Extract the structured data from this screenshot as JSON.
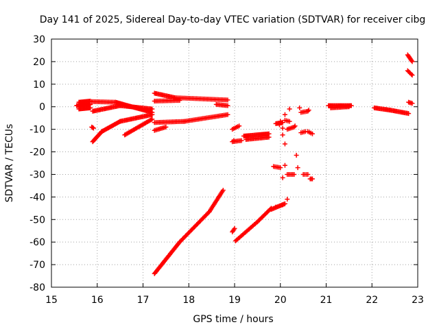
{
  "chart_data": {
    "type": "scatter",
    "title": "Day 141 of 2025, Sidereal Day-to-day VTEC variation (SDTVAR) for receiver cibg",
    "xlabel": "GPS time / hours",
    "ylabel": "SDTVAR / TECUs",
    "xlim": [
      15,
      23
    ],
    "ylim": [
      -80,
      30
    ],
    "xticks": [
      15,
      16,
      17,
      18,
      19,
      20,
      21,
      22,
      23
    ],
    "yticks": [
      -80,
      -70,
      -60,
      -50,
      -40,
      -30,
      -20,
      -10,
      0,
      10,
      20,
      30
    ],
    "xtick_labels": [
      "15",
      "16",
      "17",
      "18",
      "19",
      "20",
      "21",
      "22",
      "23"
    ],
    "ytick_labels": [
      "-80",
      "-70",
      "-60",
      "-50",
      "-40",
      "-30",
      "-20",
      "-10",
      "0",
      "10",
      "20",
      "30"
    ],
    "grid": true,
    "marker": "+",
    "color": "#ff0000",
    "segments": [
      {
        "name": "s1",
        "x0": 15.55,
        "y0": 0.5,
        "x1": 15.85,
        "y1": 1.0,
        "n": 26
      },
      {
        "name": "s2",
        "x0": 15.6,
        "y0": 2.0,
        "x1": 15.85,
        "y1": 2.5,
        "n": 14
      },
      {
        "name": "s3",
        "x0": 15.6,
        "y0": -1.0,
        "x1": 15.85,
        "y1": -0.5,
        "n": 14
      },
      {
        "name": "s4",
        "x0": 15.85,
        "y0": 2.3,
        "x1": 16.4,
        "y1": 2.0,
        "n": 20
      },
      {
        "name": "s5",
        "x0": 16.4,
        "y0": 2.0,
        "x1": 17.2,
        "y1": -2.5,
        "n": 40
      },
      {
        "name": "s6",
        "x0": 15.9,
        "y0": -2.0,
        "x1": 16.5,
        "y1": 0.5,
        "n": 26
      },
      {
        "name": "s7",
        "x0": 16.5,
        "y0": 0.5,
        "x1": 17.2,
        "y1": -1.0,
        "n": 30
      },
      {
        "name": "s8",
        "x0": 15.9,
        "y0": -15.5,
        "x1": 16.1,
        "y1": -11.0,
        "n": 14
      },
      {
        "name": "s9",
        "x0": 16.1,
        "y0": -11.0,
        "x1": 16.5,
        "y1": -6.5,
        "n": 20
      },
      {
        "name": "s10",
        "x0": 16.5,
        "y0": -6.5,
        "x1": 17.2,
        "y1": -3.5,
        "n": 30
      },
      {
        "name": "s11",
        "x0": 16.6,
        "y0": -12.5,
        "x1": 17.2,
        "y1": -5.5,
        "n": 26
      },
      {
        "name": "s12",
        "x0": 15.88,
        "y0": -9.0,
        "x1": 15.92,
        "y1": -9.5,
        "n": 3
      },
      {
        "name": "s13",
        "x0": 17.25,
        "y0": 6.0,
        "x1": 17.7,
        "y1": 4.0,
        "n": 20
      },
      {
        "name": "s14",
        "x0": 17.7,
        "y0": 4.0,
        "x1": 18.85,
        "y1": 3.0,
        "n": 40
      },
      {
        "name": "s15",
        "x0": 17.25,
        "y0": 2.5,
        "x1": 17.8,
        "y1": 2.8,
        "n": 20
      },
      {
        "name": "s16",
        "x0": 18.6,
        "y0": 1.0,
        "x1": 18.85,
        "y1": 0.5,
        "n": 10
      },
      {
        "name": "s17",
        "x0": 17.25,
        "y0": -7.0,
        "x1": 17.9,
        "y1": -6.5,
        "n": 24
      },
      {
        "name": "s18",
        "x0": 17.9,
        "y0": -6.5,
        "x1": 18.85,
        "y1": -3.5,
        "n": 34
      },
      {
        "name": "s19",
        "x0": 17.25,
        "y0": -10.5,
        "x1": 17.5,
        "y1": -9.0,
        "n": 10
      },
      {
        "name": "s20",
        "x0": 17.25,
        "y0": -74.0,
        "x1": 17.8,
        "y1": -60.0,
        "n": 34
      },
      {
        "name": "s21",
        "x0": 17.8,
        "y0": -60.0,
        "x1": 18.45,
        "y1": -46.5,
        "n": 34
      },
      {
        "name": "s22",
        "x0": 18.45,
        "y0": -46.5,
        "x1": 18.75,
        "y1": -37.0,
        "n": 18
      },
      {
        "name": "s23",
        "x0": 18.95,
        "y0": -55.5,
        "x1": 19.0,
        "y1": -54.0,
        "n": 4
      },
      {
        "name": "s24",
        "x0": 19.02,
        "y0": -59.5,
        "x1": 19.5,
        "y1": -51.0,
        "n": 22
      },
      {
        "name": "s25",
        "x0": 19.5,
        "y0": -51.0,
        "x1": 19.8,
        "y1": -45.0,
        "n": 16
      },
      {
        "name": "s26",
        "x0": 19.8,
        "y0": -45.5,
        "x1": 20.1,
        "y1": -43.0,
        "n": 14
      },
      {
        "name": "s27",
        "x0": 18.95,
        "y0": -15.5,
        "x1": 19.15,
        "y1": -15.0,
        "n": 8
      },
      {
        "name": "s28",
        "x0": 18.95,
        "y0": -10.0,
        "x1": 19.1,
        "y1": -8.5,
        "n": 6
      },
      {
        "name": "s29",
        "x0": 19.2,
        "y0": -13.0,
        "x1": 19.75,
        "y1": -12.0,
        "n": 26
      },
      {
        "name": "s30",
        "x0": 19.25,
        "y0": -14.5,
        "x1": 19.75,
        "y1": -13.5,
        "n": 20
      },
      {
        "name": "s31",
        "x0": 19.9,
        "y0": -7.5,
        "x1": 20.05,
        "y1": -7.0,
        "n": 8
      },
      {
        "name": "s32",
        "x0": 19.85,
        "y0": -26.5,
        "x1": 20.0,
        "y1": -27.0,
        "n": 6
      },
      {
        "name": "s33",
        "x0": 20.15,
        "y0": -30.0,
        "x1": 20.3,
        "y1": -30.0,
        "n": 6
      },
      {
        "name": "s34",
        "x0": 20.5,
        "y0": -30.0,
        "x1": 20.6,
        "y1": -30.0,
        "n": 4
      },
      {
        "name": "s35",
        "x0": 20.65,
        "y0": -32.0,
        "x1": 20.7,
        "y1": -32.0,
        "n": 3
      },
      {
        "name": "s36",
        "x0": 20.15,
        "y0": -10.0,
        "x1": 20.3,
        "y1": -9.0,
        "n": 6
      },
      {
        "name": "s37",
        "x0": 20.45,
        "y0": -11.5,
        "x1": 20.55,
        "y1": -11.0,
        "n": 4
      },
      {
        "name": "s38",
        "x0": 20.6,
        "y0": -11.0,
        "x1": 20.7,
        "y1": -12.0,
        "n": 4
      },
      {
        "name": "s39",
        "x0": 20.45,
        "y0": -2.5,
        "x1": 20.6,
        "y1": -2.0,
        "n": 6
      },
      {
        "name": "s40",
        "x0": 20.1,
        "y0": -6.0,
        "x1": 20.2,
        "y1": -6.5,
        "n": 4
      },
      {
        "name": "s41",
        "x0": 21.05,
        "y0": 0.5,
        "x1": 21.55,
        "y1": 0.5,
        "n": 24
      },
      {
        "name": "s42",
        "x0": 21.1,
        "y0": -0.5,
        "x1": 21.5,
        "y1": 0.0,
        "n": 16
      },
      {
        "name": "s43",
        "x0": 22.05,
        "y0": -0.5,
        "x1": 22.4,
        "y1": -1.5,
        "n": 16
      },
      {
        "name": "s44",
        "x0": 22.4,
        "y0": -1.5,
        "x1": 22.8,
        "y1": -3.0,
        "n": 18
      },
      {
        "name": "s45",
        "x0": 22.78,
        "y0": 23.0,
        "x1": 22.88,
        "y1": 20.0,
        "n": 8
      },
      {
        "name": "s46",
        "x0": 22.78,
        "y0": 16.0,
        "x1": 22.88,
        "y1": 14.0,
        "n": 6
      },
      {
        "name": "s47",
        "x0": 22.8,
        "y0": 2.0,
        "x1": 22.88,
        "y1": 1.5,
        "n": 4
      }
    ],
    "points": [
      [
        20.0,
        -6.5
      ],
      [
        19.98,
        -8.0
      ],
      [
        20.05,
        -9.5
      ],
      [
        20.05,
        -12.5
      ],
      [
        20.1,
        -16.5
      ],
      [
        20.1,
        -3.5
      ],
      [
        20.2,
        -1.0
      ],
      [
        20.32,
        -8.5
      ],
      [
        20.35,
        -21.5
      ],
      [
        20.38,
        -27.0
      ],
      [
        20.05,
        -31.5
      ],
      [
        20.1,
        -26.0
      ],
      [
        20.15,
        -41.0
      ],
      [
        20.05,
        -43.5
      ],
      [
        19.9,
        -44.5
      ],
      [
        20.42,
        -0.5
      ],
      [
        20.62,
        -1.5
      ],
      [
        18.98,
        -15.0
      ]
    ]
  }
}
